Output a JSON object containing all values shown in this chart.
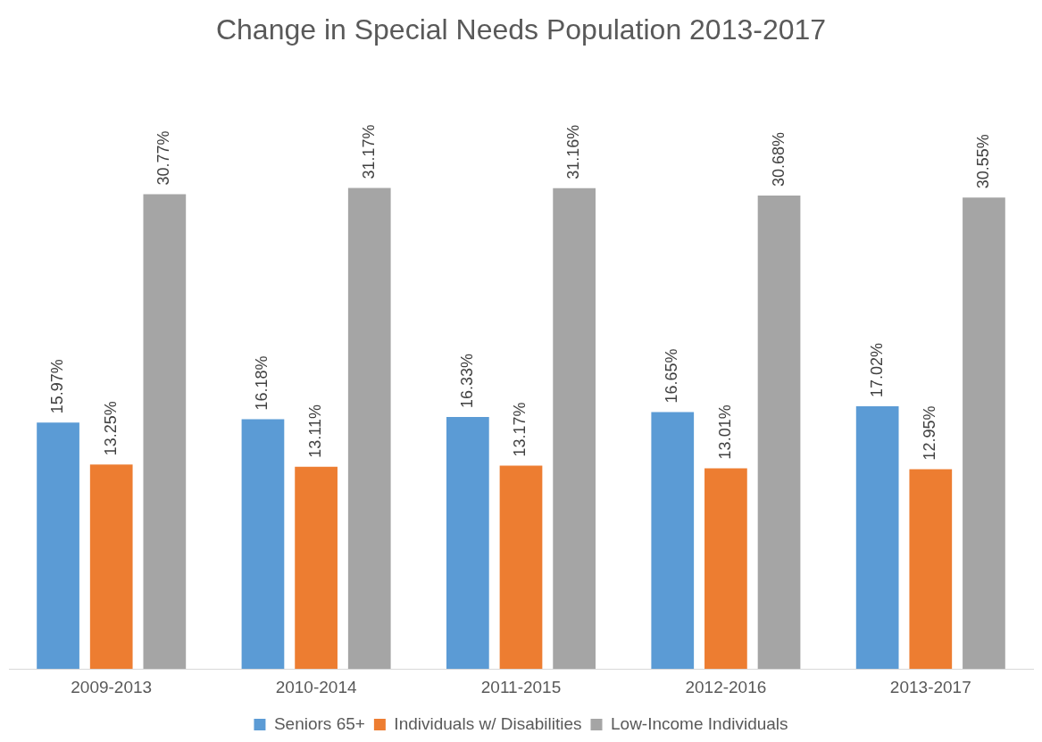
{
  "chart_data": {
    "type": "bar",
    "title": "Change in Special Needs Population 2013-2017",
    "categories": [
      "2009-2013",
      "2010-2014",
      "2011-2015",
      "2012-2016",
      "2013-2017"
    ],
    "series": [
      {
        "name": "Seniors 65+",
        "color": "#5b9bd5",
        "values": [
          15.97,
          16.18,
          16.33,
          16.65,
          17.02
        ],
        "value_labels": [
          "15.97%",
          "16.18%",
          "16.33%",
          "16.65%",
          "17.02%"
        ]
      },
      {
        "name": "Individuals w/ Disabilities",
        "color": "#ed7d31",
        "values": [
          13.25,
          13.11,
          13.17,
          13.01,
          12.95
        ],
        "value_labels": [
          "13.25%",
          "13.11%",
          "13.17%",
          "13.01%",
          "12.95%"
        ]
      },
      {
        "name": "Low-Income Individuals",
        "color": "#a5a5a5",
        "values": [
          30.77,
          31.17,
          31.16,
          30.68,
          30.55
        ],
        "value_labels": [
          "30.77%",
          "31.17%",
          "31.16%",
          "30.68%",
          "30.55%"
        ]
      }
    ],
    "grid": false,
    "legend": "bottom",
    "tick_labels": "x"
  }
}
